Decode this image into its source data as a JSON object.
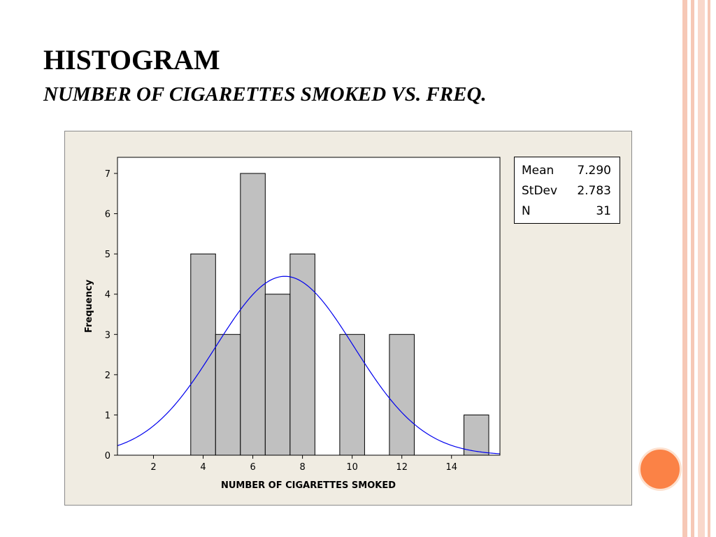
{
  "slide": {
    "title": "HISTOGRAM",
    "subtitle": "NUMBER OF CIGARETTES SMOKED VS. FREQ.",
    "accent_color": "#fb8246",
    "stripe_color": "#f4b9a3"
  },
  "stats": {
    "rows": [
      {
        "label": "Mean",
        "value": "7.290"
      },
      {
        "label": "StDev",
        "value": "2.783"
      },
      {
        "label": "N",
        "value": "31"
      }
    ]
  },
  "chart_data": {
    "type": "bar",
    "subtype": "histogram",
    "title": "",
    "xlabel": "NUMBER OF CIGARETTES SMOKED",
    "ylabel": "Frequency",
    "bin_width": 1,
    "bins": [
      {
        "center": 4,
        "count": 5
      },
      {
        "center": 5,
        "count": 3
      },
      {
        "center": 6,
        "count": 7
      },
      {
        "center": 7,
        "count": 4
      },
      {
        "center": 8,
        "count": 5
      },
      {
        "center": 10,
        "count": 3
      },
      {
        "center": 12,
        "count": 3
      },
      {
        "center": 15,
        "count": 1
      }
    ],
    "xlim": [
      0.55,
      15.95
    ],
    "ylim": [
      0,
      7.4
    ],
    "xticks": [
      2,
      4,
      6,
      8,
      10,
      12,
      14
    ],
    "yticks": [
      0,
      1,
      2,
      3,
      4,
      5,
      6,
      7
    ],
    "normal_fit": {
      "mean": 7.29,
      "stdev": 2.783,
      "n": 31
    },
    "bar_color": "#c0c0c0",
    "curve_color": "#0000ee",
    "legend": "top-right",
    "grid": false
  }
}
